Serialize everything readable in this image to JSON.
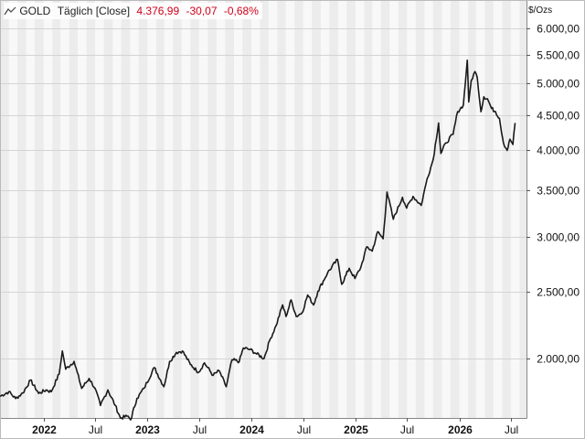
{
  "header": {
    "symbol": "GOLD",
    "interval": "Täglich [Close]",
    "last": "4.376,99",
    "change": "-30,07",
    "change_pct": "-0,68%",
    "change_color": "#d0021b"
  },
  "chart_data": {
    "type": "line",
    "ylabel": "$/Ozs",
    "y_scale": "log",
    "ylim": [
      1640,
      6600
    ],
    "xlim": [
      "2021-08-01",
      "2026-08-25"
    ],
    "grid": true,
    "line_color": "#1a1a1a",
    "y_ticks": [
      {
        "value": 2000,
        "label": "2.000,00"
      },
      {
        "value": 2500,
        "label": "2.500,00"
      },
      {
        "value": 3000,
        "label": "3.000,00"
      },
      {
        "value": 3500,
        "label": "3.500,00"
      },
      {
        "value": 4000,
        "label": "4.000,00"
      },
      {
        "value": 4500,
        "label": "4.500,00"
      },
      {
        "value": 5000,
        "label": "5.000,00"
      },
      {
        "value": 5500,
        "label": "5.500,00"
      },
      {
        "value": 6000,
        "label": "6.000,00"
      }
    ],
    "x_ticks": [
      {
        "date": "2022-01-01",
        "label": "2022",
        "kind": "year"
      },
      {
        "date": "2022-07-01",
        "label": "Jul",
        "kind": "month"
      },
      {
        "date": "2023-01-01",
        "label": "2023",
        "kind": "year"
      },
      {
        "date": "2023-07-01",
        "label": "Jul",
        "kind": "month"
      },
      {
        "date": "2024-01-01",
        "label": "2024",
        "kind": "year"
      },
      {
        "date": "2024-07-01",
        "label": "Jul",
        "kind": "month"
      },
      {
        "date": "2025-01-01",
        "label": "2025",
        "kind": "year"
      },
      {
        "date": "2025-07-01",
        "label": "Jul",
        "kind": "month"
      },
      {
        "date": "2026-01-01",
        "label": "2026",
        "kind": "year"
      },
      {
        "date": "2026-07-01",
        "label": "Jul",
        "kind": "month"
      }
    ],
    "series": [
      {
        "points": [
          [
            "2021-08-01",
            1763
          ],
          [
            "2021-09-01",
            1790
          ],
          [
            "2021-09-25",
            1750
          ],
          [
            "2021-10-20",
            1782
          ],
          [
            "2021-11-16",
            1860
          ],
          [
            "2021-12-15",
            1780
          ],
          [
            "2022-01-10",
            1800
          ],
          [
            "2022-01-28",
            1790
          ],
          [
            "2022-02-25",
            1900
          ],
          [
            "2022-03-08",
            2050
          ],
          [
            "2022-03-20",
            1930
          ],
          [
            "2022-04-18",
            1980
          ],
          [
            "2022-05-15",
            1810
          ],
          [
            "2022-06-10",
            1870
          ],
          [
            "2022-07-01",
            1810
          ],
          [
            "2022-07-20",
            1710
          ],
          [
            "2022-08-15",
            1800
          ],
          [
            "2022-09-10",
            1710
          ],
          [
            "2022-09-28",
            1640
          ],
          [
            "2022-10-25",
            1650
          ],
          [
            "2022-11-03",
            1630
          ],
          [
            "2022-11-25",
            1750
          ],
          [
            "2022-12-20",
            1810
          ],
          [
            "2023-01-25",
            1940
          ],
          [
            "2023-02-28",
            1820
          ],
          [
            "2023-03-20",
            1980
          ],
          [
            "2023-04-13",
            2040
          ],
          [
            "2023-05-04",
            2050
          ],
          [
            "2023-06-01",
            1960
          ],
          [
            "2023-06-30",
            1910
          ],
          [
            "2023-07-20",
            1970
          ],
          [
            "2023-08-20",
            1890
          ],
          [
            "2023-09-10",
            1920
          ],
          [
            "2023-10-05",
            1820
          ],
          [
            "2023-10-25",
            1990
          ],
          [
            "2023-11-20",
            1980
          ],
          [
            "2023-12-04",
            2070
          ],
          [
            "2023-12-28",
            2060
          ],
          [
            "2024-01-20",
            2030
          ],
          [
            "2024-02-15",
            2000
          ],
          [
            "2024-03-05",
            2120
          ],
          [
            "2024-03-28",
            2230
          ],
          [
            "2024-04-20",
            2390
          ],
          [
            "2024-05-02",
            2300
          ],
          [
            "2024-05-20",
            2430
          ],
          [
            "2024-06-07",
            2300
          ],
          [
            "2024-06-28",
            2330
          ],
          [
            "2024-07-17",
            2470
          ],
          [
            "2024-08-07",
            2390
          ],
          [
            "2024-08-22",
            2500
          ],
          [
            "2024-09-25",
            2660
          ],
          [
            "2024-10-30",
            2780
          ],
          [
            "2024-11-14",
            2560
          ],
          [
            "2024-12-10",
            2700
          ],
          [
            "2024-12-30",
            2610
          ],
          [
            "2025-01-20",
            2710
          ],
          [
            "2025-02-10",
            2900
          ],
          [
            "2025-03-01",
            2860
          ],
          [
            "2025-03-20",
            3050
          ],
          [
            "2025-04-08",
            2980
          ],
          [
            "2025-04-22",
            3480
          ],
          [
            "2025-05-14",
            3180
          ],
          [
            "2025-06-15",
            3420
          ],
          [
            "2025-06-30",
            3300
          ],
          [
            "2025-07-22",
            3430
          ],
          [
            "2025-08-20",
            3330
          ],
          [
            "2025-09-10",
            3640
          ],
          [
            "2025-10-01",
            3880
          ],
          [
            "2025-10-20",
            4380
          ],
          [
            "2025-10-28",
            3960
          ],
          [
            "2025-11-15",
            4100
          ],
          [
            "2025-12-10",
            4220
          ],
          [
            "2025-12-26",
            4550
          ],
          [
            "2026-01-15",
            4650
          ],
          [
            "2026-01-29",
            5400
          ],
          [
            "2026-02-03",
            4700
          ],
          [
            "2026-02-12",
            5050
          ],
          [
            "2026-02-25",
            5200
          ],
          [
            "2026-03-05",
            5100
          ],
          [
            "2026-03-18",
            4550
          ],
          [
            "2026-03-28",
            4780
          ],
          [
            "2026-04-10",
            4750
          ],
          [
            "2026-04-24",
            4600
          ],
          [
            "2026-05-08",
            4550
          ],
          [
            "2026-05-22",
            4450
          ],
          [
            "2026-06-05",
            4100
          ],
          [
            "2026-06-18",
            4000
          ],
          [
            "2026-06-28",
            4150
          ],
          [
            "2026-07-08",
            4080
          ],
          [
            "2026-07-16",
            4377
          ]
        ]
      }
    ]
  }
}
